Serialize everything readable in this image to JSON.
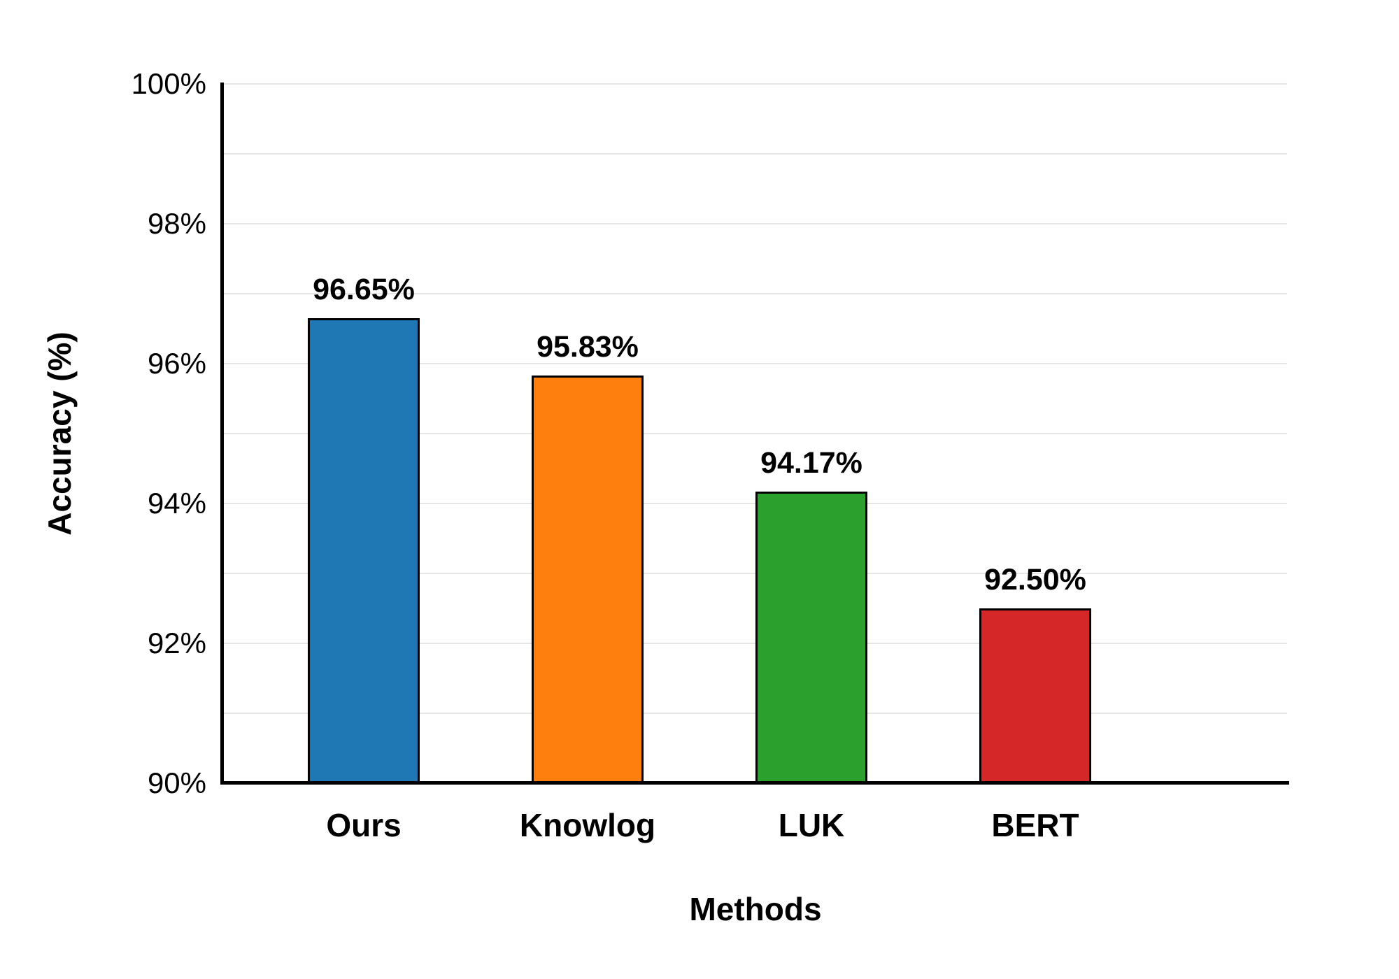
{
  "chart_data": {
    "type": "bar",
    "title": "",
    "xlabel": "Methods",
    "ylabel": "Accuracy (%)",
    "categories": [
      "Ours",
      "Knowlog",
      "LUK",
      "BERT"
    ],
    "values": [
      96.65,
      95.83,
      94.17,
      92.5
    ],
    "value_labels": [
      "96.65%",
      "95.83%",
      "94.17%",
      "92.50%"
    ],
    "bar_colors": [
      "#1f77b4",
      "#ff7f0e",
      "#2ca02c",
      "#d62728"
    ],
    "bar_edge_color": "#000000",
    "ylim": [
      90,
      100
    ],
    "ytick_values": [
      90,
      92,
      94,
      96,
      98,
      100
    ],
    "ytick_labels": [
      "90%",
      "92%",
      "94%",
      "96%",
      "98%",
      "100%"
    ],
    "gridline_values": [
      91,
      92,
      93,
      94,
      95,
      96,
      97,
      98,
      99,
      100
    ],
    "grid": "horizontal",
    "gridline_color": "#e8e8e8",
    "axis_color": "#000000",
    "background_color": "#ffffff",
    "legend": "none"
  }
}
